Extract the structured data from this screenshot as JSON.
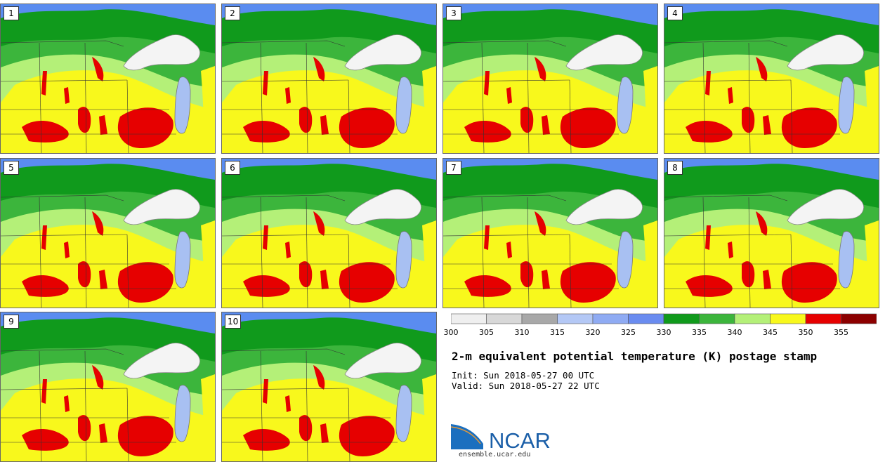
{
  "panels": [
    {
      "label": "1"
    },
    {
      "label": "2"
    },
    {
      "label": "3"
    },
    {
      "label": "4"
    },
    {
      "label": "5"
    },
    {
      "label": "6"
    },
    {
      "label": "7"
    },
    {
      "label": "8"
    },
    {
      "label": "9"
    },
    {
      "label": "10"
    }
  ],
  "colorbar": {
    "ticks": [
      "300",
      "305",
      "310",
      "315",
      "320",
      "325",
      "330",
      "335",
      "340",
      "345",
      "350",
      "355"
    ],
    "colors": [
      "#efefef",
      "#d8d8d8",
      "#a8a8a8",
      "#b4c8f5",
      "#8fabf3",
      "#6a8cf0",
      "#109a1c",
      "#3cb53c",
      "#b4f078",
      "#f8f81c",
      "#e60000",
      "#8c0000"
    ]
  },
  "title": "2-m equivalent potential temperature (K) postage stamp",
  "init": "Init: Sun 2018-05-27 00 UTC",
  "valid": "Valid: Sun 2018-05-27 22 UTC",
  "logo": {
    "text": "NCAR",
    "color": "#1b5fa8"
  },
  "url": "ensemble.ucar.edu"
}
